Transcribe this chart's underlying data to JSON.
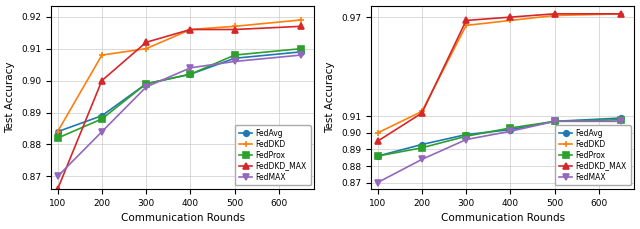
{
  "left_chart": {
    "xlabel": "Communication Rounds",
    "ylabel": "Test Accuracy",
    "x": [
      100,
      200,
      300,
      400,
      500,
      650
    ],
    "FedAvg": [
      0.884,
      0.889,
      0.899,
      0.902,
      0.907,
      0.909
    ],
    "FedDKD": [
      0.884,
      0.908,
      0.91,
      0.916,
      0.917,
      0.919
    ],
    "FedProx": [
      0.882,
      0.888,
      0.899,
      0.902,
      0.908,
      0.91
    ],
    "FedDKD_MAX": [
      0.866,
      0.9,
      0.912,
      0.916,
      0.916,
      0.917
    ],
    "FedMAX": [
      0.87,
      0.884,
      0.898,
      0.904,
      0.906,
      0.908
    ],
    "ylim": [
      0.866,
      0.9235
    ],
    "yticks": [
      0.87,
      0.88,
      0.89,
      0.9,
      0.91,
      0.92
    ]
  },
  "right_chart": {
    "xlabel": "Communication Rounds",
    "ylabel": "Test Accuracy",
    "x": [
      100,
      200,
      300,
      400,
      500,
      650
    ],
    "FedAvg": [
      0.886,
      0.893,
      0.899,
      0.902,
      0.907,
      0.909
    ],
    "FedDKD": [
      0.9,
      0.913,
      0.965,
      0.968,
      0.971,
      0.972
    ],
    "FedProx": [
      0.886,
      0.891,
      0.898,
      0.903,
      0.907,
      0.908
    ],
    "FedDKD_MAX": [
      0.895,
      0.912,
      0.968,
      0.97,
      0.972,
      0.972
    ],
    "FedMAX": [
      0.87,
      0.884,
      0.896,
      0.901,
      0.907,
      0.907
    ],
    "ylim": [
      0.866,
      0.977
    ],
    "yticks": [
      0.87,
      0.88,
      0.89,
      0.9,
      0.91,
      0.97
    ]
  },
  "colors": {
    "FedAvg": "#1f77b4",
    "FedDKD": "#ff7f0e",
    "FedProx": "#2ca02c",
    "FedDKD_MAX": "#d62728",
    "FedMAX": "#9467bd"
  },
  "markers": {
    "FedAvg": "o",
    "FedDKD": "+",
    "FedProx": "s",
    "FedDKD_MAX": "^",
    "FedMAX": "v"
  },
  "labels": {
    "FedAvg": "FedAvg",
    "FedDKD": "FedDKD",
    "FedProx": "FedProx",
    "FedDKD_MAX": "FedDKD_MAX",
    "FedMAX": "FedMAX"
  }
}
